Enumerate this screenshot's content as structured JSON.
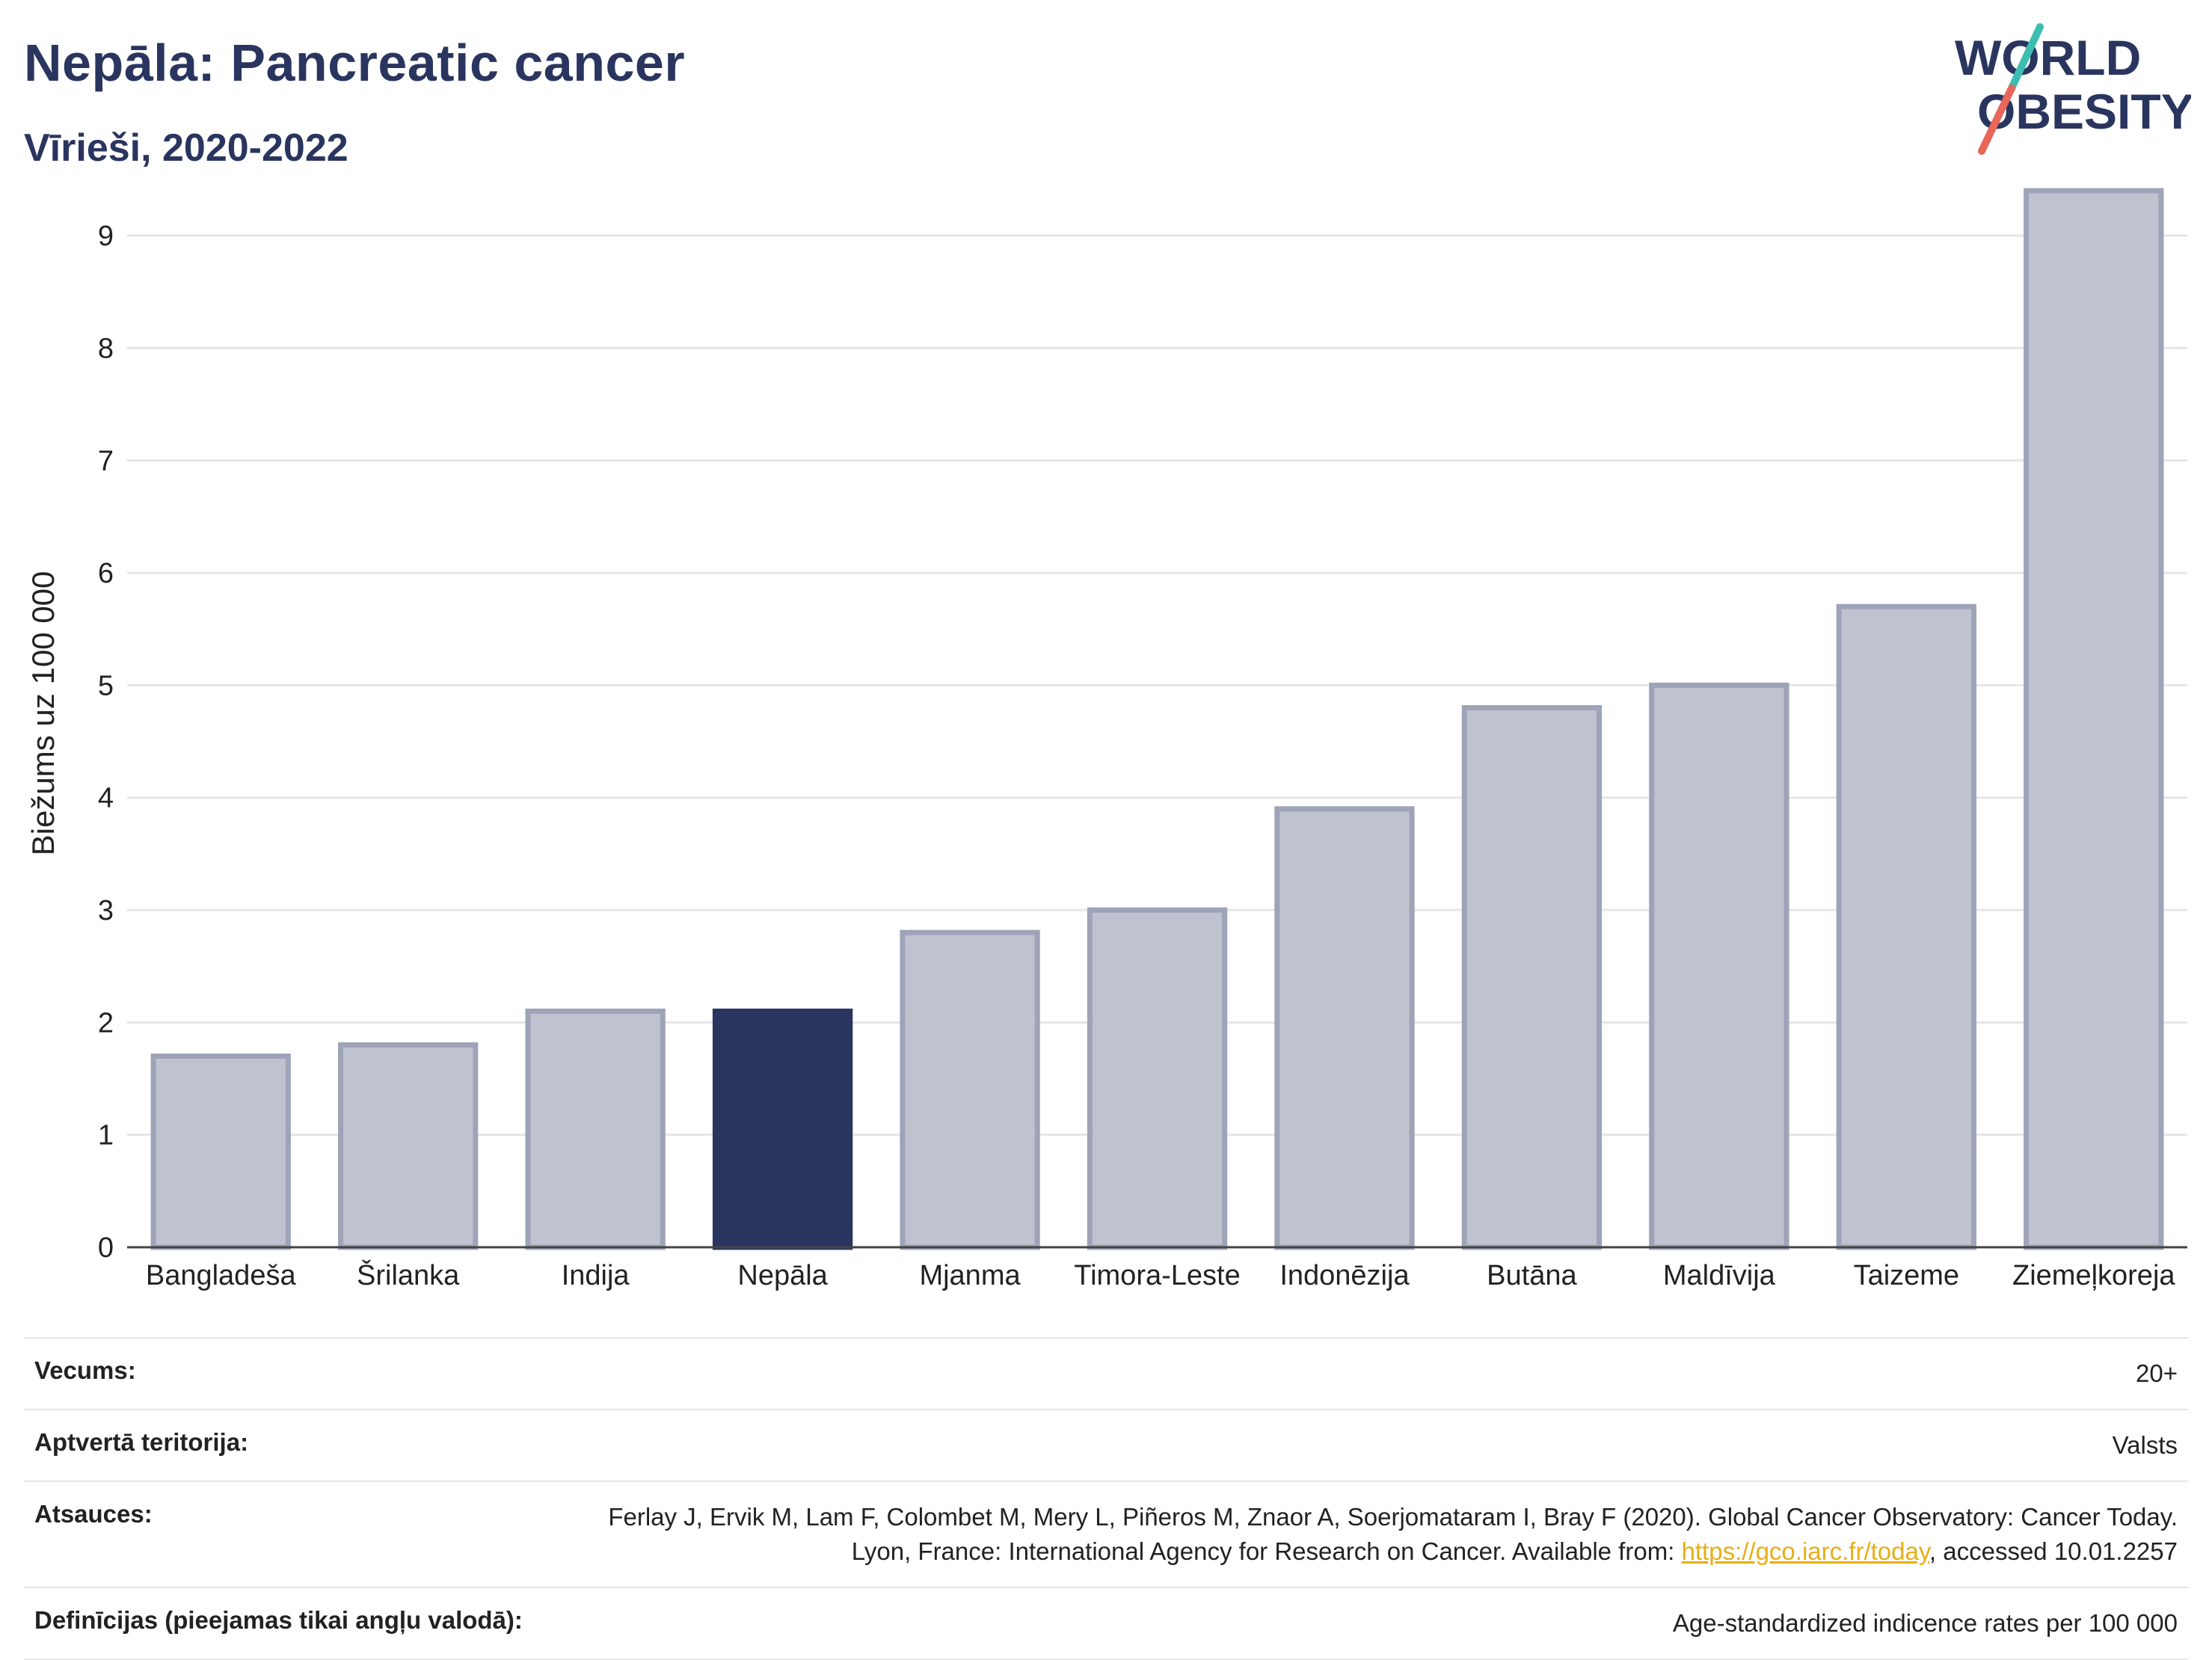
{
  "header": {
    "title": "Nepāla: Pancreatic cancer",
    "subtitle": "Vīrieši, 2020-2022"
  },
  "logo": {
    "line1": "WORLD",
    "line2": "OBESITY",
    "colors": {
      "text": "#2a355f",
      "slash_top": "#3dbdb1",
      "slash_bottom": "#e8665a"
    }
  },
  "chart_data": {
    "type": "bar",
    "categories": [
      "Bangladeša",
      "Šrilanka",
      "Indija",
      "Nepāla",
      "Mjanma",
      "Timora-Leste",
      "Indonēzija",
      "Butāna",
      "Maldīvija",
      "Taizeme",
      "Ziemeļkoreja"
    ],
    "values": [
      1.7,
      1.8,
      2.1,
      2.1,
      2.8,
      3.0,
      3.9,
      4.8,
      5.0,
      5.7,
      9.4
    ],
    "highlight": "Nepāla",
    "ylabel": "Biežums uz 100 000",
    "ylim": [
      0,
      9.5
    ],
    "yticks": [
      0,
      1,
      2,
      3,
      4,
      5,
      6,
      7,
      8,
      9
    ],
    "grid": true,
    "colors": {
      "bar": "#bfc2cf",
      "bar_edge": "#9ea3b8",
      "highlight": "#2a355f",
      "grid": "#e6e6ea",
      "axis": "#444444"
    }
  },
  "info": {
    "age_label": "Vecums:",
    "age_value": "20+",
    "coverage_label": "Aptvertā teritorija:",
    "coverage_value": "Valsts",
    "refs_label": "Atsauces:",
    "refs_text_1": "Ferlay J, Ervik M, Lam F, Colombet M, Mery L, Piñeros M, Znaor A, Soerjomataram I, Bray F (2020). Global Cancer Observatory: Cancer Today. Lyon, France: International Agency for Research on Cancer. Available from: ",
    "refs_link": "https://gco.iarc.fr/today",
    "refs_text_2": ", accessed 10.01.2257",
    "defs_label": "Definīcijas (pieejamas tikai angļu valodā):",
    "defs_value": "Age-standardized indicence rates per 100 000"
  }
}
